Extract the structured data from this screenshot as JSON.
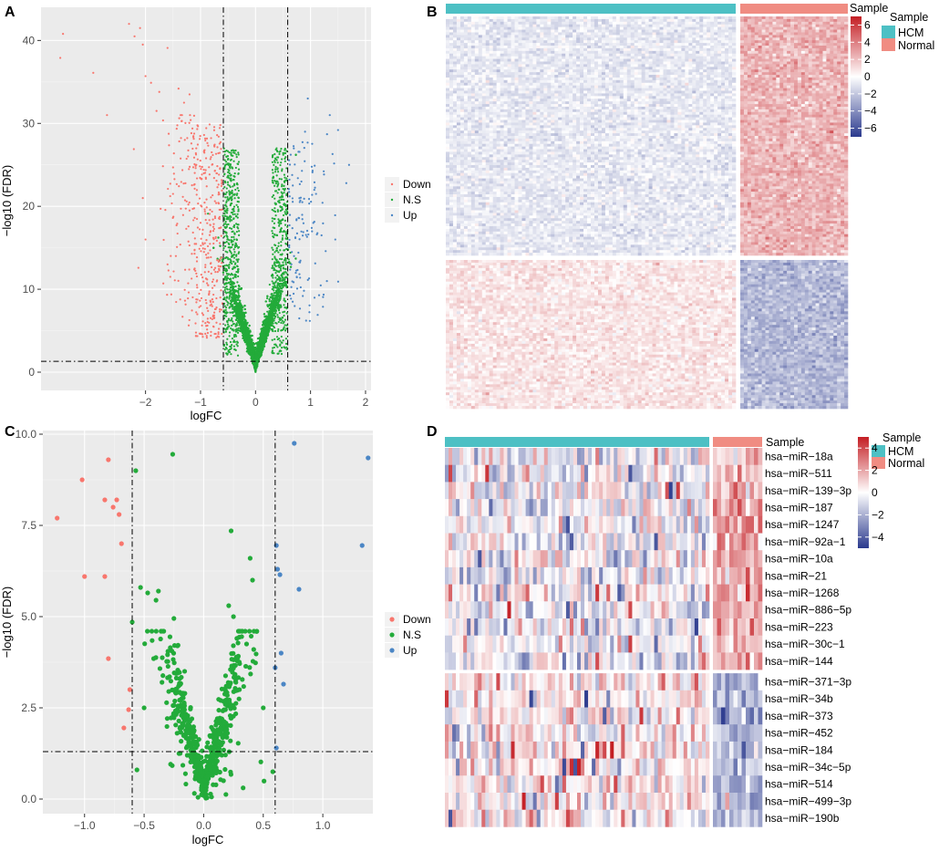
{
  "colors": {
    "down": "#F8766D",
    "ns": "#23AB3A",
    "up": "#4B86C5",
    "hcm": "#4DC0C4",
    "normal": "#F08C82",
    "panel_bg": "#EBEBEB",
    "heat_neg": "#2B3A8E",
    "heat_mid": "#FFFFFF",
    "heat_pos": "#C41E24"
  },
  "chart_data": [
    {
      "panel": "A",
      "type": "scatter",
      "title": "",
      "xlabel": "logFC",
      "ylabel": "−log10 (FDR)",
      "xlim": [
        -3.9,
        2.1
      ],
      "ylim": [
        -2.2,
        44
      ],
      "x_ticks": [
        -2,
        -1,
        0,
        1,
        2
      ],
      "x_tick_labels": [
        "−2",
        "−1",
        "0",
        "1",
        "2"
      ],
      "y_ticks": [
        0,
        10,
        20,
        30,
        40
      ],
      "y_tick_labels": [
        "0",
        "10",
        "20",
        "30",
        "40"
      ],
      "thresholds": {
        "vlines": [
          -0.585,
          0.585
        ],
        "hline": 1.3
      },
      "legend": [
        "Down",
        "N.S",
        "Up"
      ],
      "legend_position": "right",
      "groups": [
        "Down",
        "N.S",
        "Up"
      ],
      "points_note": "Volcano plot of mRNA differential expression; dense cloud of several thousand points",
      "highlight_points": {
        "Down": [
          [
            -3.5,
            40.8
          ],
          [
            -3.55,
            37.9
          ],
          [
            -2.95,
            36.1
          ],
          [
            -2.7,
            31.0
          ],
          [
            -2.3,
            42.0
          ],
          [
            -2.2,
            40.5
          ],
          [
            -2.1,
            41.5
          ],
          [
            -2.05,
            39.5
          ],
          [
            -2.0,
            35.7
          ],
          [
            -1.9,
            34.9
          ],
          [
            -1.8,
            31.5
          ],
          [
            -1.75,
            33.8
          ],
          [
            -1.6,
            39.1
          ],
          [
            -1.4,
            34.2
          ],
          [
            -1.3,
            32.5
          ],
          [
            -1.2,
            33.5
          ],
          [
            -2.05,
            21.0
          ],
          [
            -2.0,
            16.0
          ],
          [
            -1.6,
            13.0
          ],
          [
            -1.55,
            11.5
          ],
          [
            -1.5,
            21.5
          ]
        ],
        "Up": [
          [
            1.7,
            25.0
          ],
          [
            1.65,
            22.8
          ],
          [
            1.5,
            29.2
          ],
          [
            1.45,
            16.0
          ],
          [
            1.4,
            26.3
          ],
          [
            1.35,
            31.0
          ],
          [
            1.3,
            28.7
          ],
          [
            1.2,
            16.5
          ],
          [
            1.1,
            21.5
          ],
          [
            1.05,
            18.0
          ],
          [
            0.95,
            33.0
          ],
          [
            0.9,
            29.0
          ],
          [
            0.85,
            20.5
          ],
          [
            0.75,
            11.5
          ],
          [
            0.7,
            14.0
          ]
        ],
        "N.S": [
          [
            0.3,
            15
          ],
          [
            0.35,
            13
          ],
          [
            0.45,
            20
          ],
          [
            -0.3,
            10
          ],
          [
            -0.25,
            8
          ],
          [
            -0.35,
            14
          ]
        ]
      }
    },
    {
      "panel": "C",
      "type": "scatter",
      "title": "",
      "xlabel": "logFC",
      "ylabel": "−log10 (FDR)",
      "xlim": [
        -1.35,
        1.42
      ],
      "ylim": [
        -0.4,
        10.1
      ],
      "x_ticks": [
        -1.0,
        -0.5,
        0.0,
        0.5,
        1.0
      ],
      "x_tick_labels": [
        "−1.0",
        "−0.5",
        "0.0",
        "0.5",
        "1.0"
      ],
      "y_ticks": [
        0.0,
        2.5,
        5.0,
        7.5,
        10.0
      ],
      "y_tick_labels": [
        "0.0",
        "2.5",
        "5.0",
        "7.5",
        "10.0"
      ],
      "thresholds": {
        "vlines": [
          -0.6,
          0.6
        ],
        "hline": 1.3
      },
      "legend": [
        "Down",
        "N.S",
        "Up"
      ],
      "legend_position": "right",
      "points": {
        "Down": [
          [
            -1.23,
            7.7
          ],
          [
            -1.02,
            8.75
          ],
          [
            -1.0,
            6.1
          ],
          [
            -0.83,
            8.2
          ],
          [
            -0.83,
            6.1
          ],
          [
            -0.8,
            9.3
          ],
          [
            -0.8,
            3.85
          ],
          [
            -0.76,
            8.0
          ],
          [
            -0.73,
            8.2
          ],
          [
            -0.71,
            7.8
          ],
          [
            -0.69,
            7.0
          ],
          [
            -0.67,
            1.95
          ],
          [
            -0.63,
            2.45
          ],
          [
            -0.62,
            3.0
          ]
        ],
        "Up": [
          [
            0.6,
            3.6
          ],
          [
            0.61,
            6.95
          ],
          [
            0.61,
            1.4
          ],
          [
            0.62,
            6.3
          ],
          [
            0.64,
            6.15
          ],
          [
            0.65,
            4.0
          ],
          [
            0.67,
            3.15
          ],
          [
            0.76,
            9.75
          ],
          [
            0.8,
            5.75
          ],
          [
            1.33,
            6.95
          ],
          [
            1.38,
            9.35
          ]
        ],
        "N.S": [
          [
            -0.57,
            9.0
          ],
          [
            -0.26,
            9.45
          ],
          [
            -0.53,
            5.8
          ],
          [
            -0.6,
            4.85
          ],
          [
            -0.47,
            5.65
          ],
          [
            -0.4,
            5.45
          ],
          [
            -0.38,
            5.7
          ],
          [
            -0.25,
            4.95
          ],
          [
            -0.42,
            3.85
          ],
          [
            -0.3,
            4.05
          ],
          [
            -0.28,
            4.15
          ],
          [
            -0.22,
            4.2
          ],
          [
            0.23,
            7.35
          ],
          [
            0.39,
            6.6
          ],
          [
            0.41,
            6.0
          ],
          [
            0.21,
            5.3
          ],
          [
            0.25,
            5.0
          ],
          [
            0.36,
            4.25
          ],
          [
            0.42,
            4.1
          ],
          [
            -0.56,
            0.8
          ],
          [
            0.58,
            0.75
          ],
          [
            0.5,
            2.5
          ],
          [
            -0.5,
            2.5
          ],
          [
            0.3,
            3.0
          ],
          [
            -0.35,
            3.2
          ]
        ]
      }
    },
    {
      "panel": "B",
      "type": "heatmap",
      "title": "",
      "annotation_label": "Sample",
      "groups": [
        "HCM",
        "Normal"
      ],
      "legend_ticks": [
        6,
        4,
        2,
        0,
        -2,
        -4,
        -6
      ],
      "legend_tick_labels": [
        "6",
        "4",
        "2",
        "0",
        "−2",
        "−4",
        "−6"
      ],
      "value_range": [
        -7,
        7
      ],
      "columns": {
        "HCM": 80,
        "Normal": 30
      },
      "row_blocks": [
        "up-in-Normal (upper block)",
        "down-in-Normal (lower block)"
      ]
    },
    {
      "panel": "D",
      "type": "heatmap",
      "title": "",
      "annotation_label": "Sample",
      "groups": [
        "HCM",
        "Normal"
      ],
      "legend_ticks": [
        4,
        2,
        0,
        -2,
        -4
      ],
      "legend_tick_labels": [
        "4",
        "2",
        "0",
        "−2",
        "−4"
      ],
      "value_range": [
        -5,
        5
      ],
      "columns": {
        "HCM": 72,
        "Normal": 12
      },
      "rows": [
        "hsa−miR−18a",
        "hsa−miR−511",
        "hsa−miR−139−3p",
        "hsa−miR−187",
        "hsa−miR−1247",
        "hsa−miR−92a−1",
        "hsa−miR−10a",
        "hsa−miR−21",
        "hsa−miR−1268",
        "hsa−miR−886−5p",
        "hsa−miR−223",
        "hsa−miR−30c−1",
        "hsa−miR−144",
        "hsa−miR−371−3p",
        "hsa−miR−34b",
        "hsa−miR−373",
        "hsa−miR−452",
        "hsa−miR−184",
        "hsa−miR−34c−5p",
        "hsa−miR−514",
        "hsa−miR−499−3p",
        "hsa−miR−190b"
      ],
      "row_split_after": 13
    }
  ]
}
